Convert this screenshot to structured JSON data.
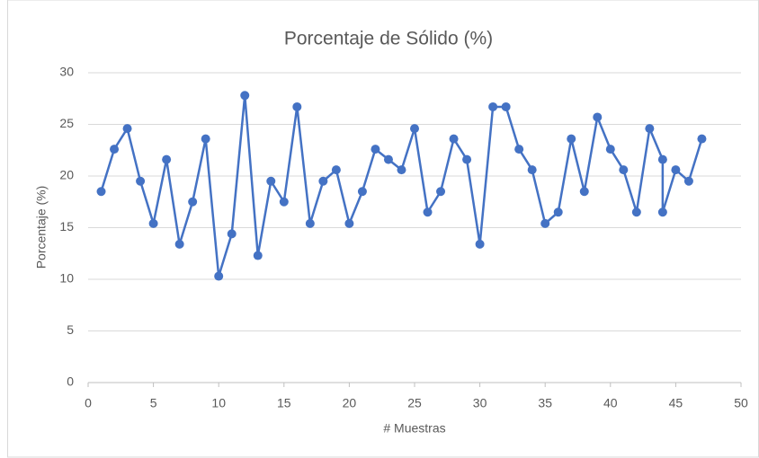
{
  "chart_data": {
    "type": "line",
    "title": "Porcentaje de Sólido (%)",
    "xlabel": "# Muestras",
    "ylabel": "Porcentaje (%)",
    "x": [
      1,
      2,
      3,
      4,
      5,
      6,
      7,
      8,
      9,
      10,
      11,
      12,
      13,
      14,
      15,
      16,
      17,
      18,
      19,
      20,
      21,
      22,
      23,
      24,
      25,
      26,
      27,
      28,
      29,
      30,
      31,
      32,
      33,
      34,
      35,
      36,
      37,
      38,
      39,
      40,
      41,
      42,
      43,
      44,
      44,
      45,
      46,
      47
    ],
    "series": [
      {
        "name": "Porcentaje",
        "color": "#4472c4",
        "values": [
          18.5,
          22.6,
          24.6,
          19.5,
          15.4,
          21.6,
          13.4,
          17.5,
          23.6,
          10.3,
          14.4,
          27.8,
          12.3,
          19.5,
          17.5,
          26.7,
          15.4,
          19.5,
          20.6,
          15.4,
          18.5,
          22.6,
          21.6,
          20.6,
          24.6,
          16.5,
          18.5,
          23.6,
          21.6,
          13.4,
          26.7,
          26.7,
          22.6,
          20.6,
          15.4,
          16.5,
          23.6,
          18.5,
          25.7,
          22.6,
          20.6,
          16.5,
          24.6,
          21.6,
          16.5,
          20.6,
          19.5,
          23.6
        ]
      }
    ],
    "xlim": [
      0,
      50
    ],
    "xticks": [
      0,
      5,
      10,
      15,
      20,
      25,
      30,
      35,
      40,
      45,
      50
    ],
    "ylim": [
      0,
      30
    ],
    "yticks": [
      0,
      5,
      10,
      15,
      20,
      25,
      30
    ],
    "grid": true
  }
}
